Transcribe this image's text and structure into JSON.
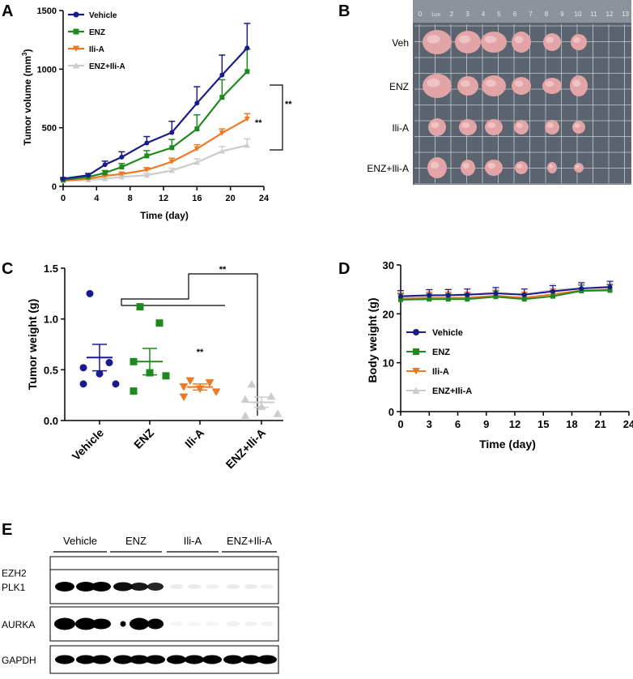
{
  "panels": {
    "a": "A",
    "b": "B",
    "c": "C",
    "d": "D",
    "e": "E"
  },
  "colors": {
    "vehicle": "#1a1a8c",
    "enz": "#1e8a1e",
    "ilia": "#f07820",
    "combo": "#cccccc"
  },
  "chart_data": [
    {
      "id": "A",
      "type": "line",
      "x": [
        0,
        3,
        5,
        7,
        10,
        13,
        16,
        19,
        22
      ],
      "series": [
        {
          "name": "Vehicle",
          "values": [
            65,
            95,
            185,
            250,
            370,
            460,
            710,
            950,
            1180
          ],
          "err": [
            10,
            15,
            30,
            45,
            55,
            95,
            140,
            170,
            210
          ]
        },
        {
          "name": "ENZ",
          "values": [
            55,
            80,
            115,
            165,
            260,
            330,
            490,
            760,
            980
          ],
          "err": [
            8,
            12,
            20,
            30,
            45,
            70,
            120,
            150,
            190
          ]
        },
        {
          "name": "Ili-A",
          "values": [
            50,
            65,
            90,
            105,
            140,
            210,
            320,
            455,
            575
          ],
          "err": [
            5,
            10,
            12,
            15,
            20,
            30,
            35,
            35,
            45
          ]
        },
        {
          "name": "ENZ+Ili-A",
          "values": [
            45,
            55,
            65,
            80,
            95,
            135,
            205,
            300,
            350
          ],
          "err": [
            5,
            8,
            10,
            12,
            15,
            20,
            30,
            40,
            55
          ]
        }
      ],
      "xlabel": "Time (day)",
      "ylabel": "Tumor volume (mm",
      "ylabel_sup": "3",
      "ylabel_end": ")",
      "xticks": [
        "0",
        "4",
        "8",
        "12",
        "16",
        "20",
        "24"
      ],
      "yticks": [
        "0",
        "500",
        "1000",
        "1500"
      ],
      "xlim": [
        0,
        24
      ],
      "ylim": [
        0,
        1500
      ],
      "annotations": [
        "**",
        "**"
      ]
    },
    {
      "id": "C",
      "type": "scatter",
      "categories": [
        "Vehicle",
        "ENZ",
        "Ili-A",
        "ENZ+Ili-A"
      ],
      "points": [
        [
          1.25,
          0.57,
          0.52,
          0.46,
          0.36,
          0.36
        ],
        [
          1.12,
          0.96,
          0.58,
          0.47,
          0.44,
          0.29
        ],
        [
          0.39,
          0.37,
          0.33,
          0.31,
          0.28,
          0.23
        ],
        [
          0.36,
          0.24,
          0.21,
          0.14,
          0.07,
          0.05
        ]
      ],
      "means": [
        0.62,
        0.58,
        0.33,
        0.18
      ],
      "sem": [
        0.13,
        0.13,
        0.03,
        0.05
      ],
      "ylabel": "Tumor weight (g)",
      "yticks": [
        "0.0",
        "0.5",
        "1.0",
        "1.5"
      ],
      "ylim": [
        0,
        1.5
      ],
      "annotations": [
        "**",
        "**"
      ]
    },
    {
      "id": "D",
      "type": "line",
      "x": [
        0,
        3,
        5,
        7,
        10,
        13,
        16,
        19,
        22
      ],
      "series": [
        {
          "name": "Vehicle",
          "values": [
            23.6,
            23.8,
            23.8,
            23.9,
            24.2,
            23.9,
            24.6,
            25.2,
            25.5
          ]
        },
        {
          "name": "ENZ",
          "values": [
            22.9,
            23.0,
            23.0,
            23.0,
            23.5,
            23.0,
            23.6,
            24.7,
            24.8
          ]
        },
        {
          "name": "Ili-A",
          "values": [
            23.1,
            23.3,
            23.3,
            23.3,
            23.7,
            23.3,
            24.0,
            24.8,
            24.9
          ]
        },
        {
          "name": "ENZ+Ili-A",
          "values": [
            23.4,
            23.7,
            23.9,
            24.0,
            24.3,
            24.0,
            24.9,
            25.3,
            25.2
          ]
        }
      ],
      "xlabel": "Time (day)",
      "ylabel": "Body weight (g)",
      "xticks": [
        "0",
        "3",
        "6",
        "9",
        "12",
        "15",
        "18",
        "21",
        "24"
      ],
      "yticks": [
        "0",
        "10",
        "20",
        "30"
      ],
      "xlim": [
        0,
        24
      ],
      "ylim": [
        0,
        30
      ]
    }
  ],
  "photo": {
    "rows": [
      "Veh",
      "ENZ",
      "Ili-A",
      "ENZ+Ili-A"
    ],
    "ruler": [
      "0",
      "1cm",
      "2",
      "3",
      "4",
      "5",
      "6",
      "7",
      "8",
      "9",
      "10",
      "11",
      "12",
      "13"
    ]
  },
  "blot": {
    "groups": [
      "Vehicle",
      "ENZ",
      "Ili-A",
      "ENZ+Ili-A"
    ],
    "proteins": [
      "EZH2",
      "PLK1",
      "AURKA",
      "GAPDH"
    ]
  }
}
